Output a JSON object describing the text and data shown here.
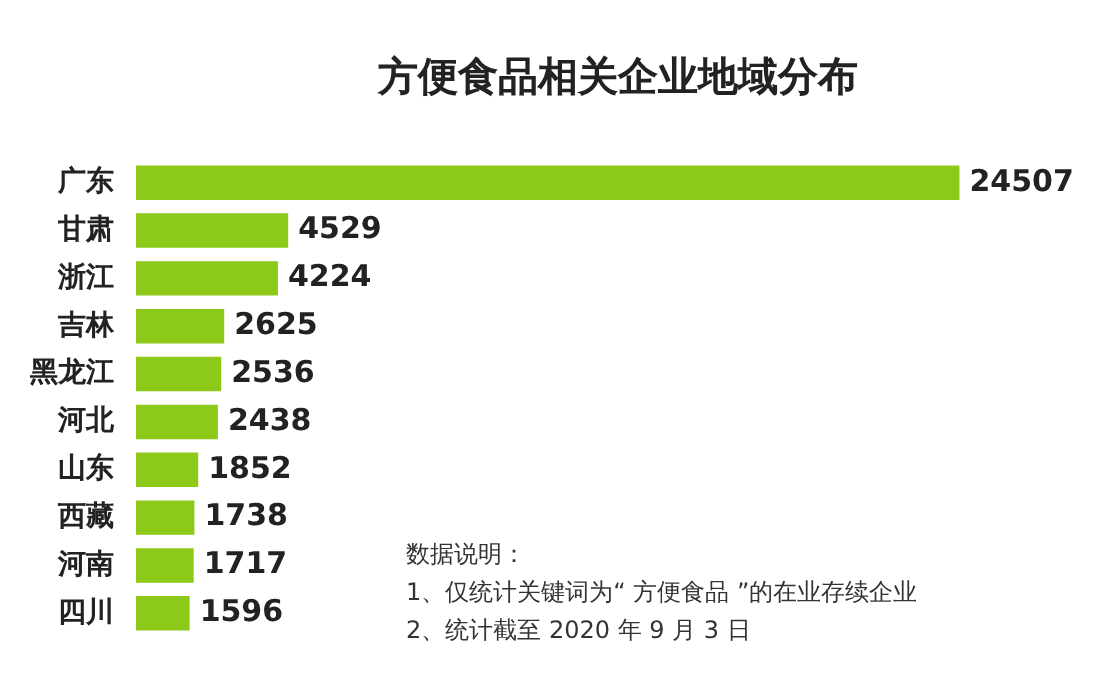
{
  "chart_data": {
    "type": "bar",
    "orientation": "horizontal",
    "title": "方便食品相关企业地域分布",
    "categories": [
      "广东",
      "甘肃",
      "浙江",
      "吉林",
      "黑龙江",
      "河北",
      "山东",
      "西藏",
      "河南",
      "四川"
    ],
    "values": [
      24507,
      4529,
      4224,
      2625,
      2536,
      2438,
      1852,
      1738,
      1717,
      1596
    ],
    "color": "#8cc919",
    "data_labels": true,
    "grid": false,
    "legend": false,
    "annotations": [
      "数据说明：",
      "1、仅统计关键词为“ 方便食品 ”的在业存续企业",
      "2、统计截至 2020 年 9 月 3 日"
    ]
  }
}
